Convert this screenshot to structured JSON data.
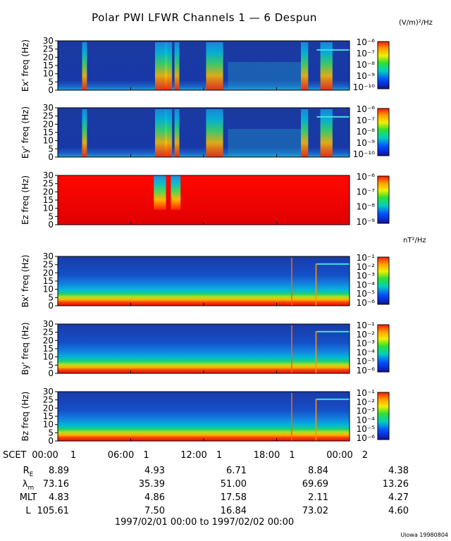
{
  "title": "Polar PWI LFWR Channels 1 — 6 Despun",
  "credit": "Uiowa 19980804",
  "date_range": "1997/02/01 00:00 to 1997/02/02 00:00",
  "units": {
    "electric": "(V/m)²/Hz",
    "magnetic": "nT²/Hz"
  },
  "colors": {
    "text": "#000000",
    "background": "#ffffff"
  },
  "chart_data": {
    "type": "heatmap",
    "description_axes": {
      "x": "SCET (time of day)",
      "y": "frequency (Hz)"
    },
    "ylim": [
      0,
      30
    ],
    "yticks": [
      0,
      5,
      10,
      15,
      20,
      25,
      30
    ],
    "xlim_hours": [
      0,
      24
    ],
    "x_ticks": [
      {
        "hour": 0,
        "label": "00:00",
        "day": "1"
      },
      {
        "hour": 6,
        "label": "06:00",
        "day": "1"
      },
      {
        "hour": 12,
        "label": "12:00",
        "day": "1"
      },
      {
        "hour": 18,
        "label": "18:00",
        "day": "1"
      },
      {
        "hour": 24,
        "label": "00:00",
        "day": "2"
      }
    ],
    "panels": [
      {
        "ylabel": "Ex' freq (Hz)",
        "unit_group": "electric",
        "colorbar": {
          "min_exp": -10,
          "max_exp": -6,
          "labels": [
            "10⁻⁶",
            "10⁻⁷",
            "10⁻⁸",
            "10⁻⁹",
            "10⁻¹⁰"
          ]
        }
      },
      {
        "ylabel": "Ey' freq (Hz)",
        "unit_group": "electric",
        "colorbar": {
          "min_exp": -10,
          "max_exp": -6,
          "labels": [
            "10⁻⁶",
            "10⁻⁷",
            "10⁻⁸",
            "10⁻⁹",
            "10⁻¹⁰"
          ]
        }
      },
      {
        "ylabel": "Ez freq (Hz)",
        "unit_group": "electric",
        "colorbar": {
          "min_exp": -9,
          "max_exp": -6,
          "labels": [
            "10⁻⁶",
            "10⁻⁷",
            "10⁻⁸",
            "10⁻⁹"
          ]
        }
      },
      {
        "ylabel": "Bx' freq (Hz)",
        "unit_group": "magnetic",
        "colorbar": {
          "min_exp": -6,
          "max_exp": -1,
          "labels": [
            "10⁻¹",
            "10⁻²",
            "10⁻³",
            "10⁻⁴",
            "10⁻⁵",
            "10⁻⁶"
          ]
        }
      },
      {
        "ylabel": "By' freq (Hz)",
        "unit_group": "magnetic",
        "colorbar": {
          "min_exp": -6,
          "max_exp": -1,
          "labels": [
            "10⁻¹",
            "10⁻²",
            "10⁻³",
            "10⁻⁴",
            "10⁻⁵",
            "10⁻⁶"
          ]
        }
      },
      {
        "ylabel": "Bz freq (Hz)",
        "unit_group": "magnetic",
        "colorbar": {
          "min_exp": -6,
          "max_exp": -1,
          "labels": [
            "10⁻¹",
            "10⁻²",
            "10⁻³",
            "10⁻⁴",
            "10⁻⁵",
            "10⁻⁶"
          ]
        }
      }
    ],
    "ephemeris": {
      "header": "SCET",
      "rows": [
        {
          "label": "RE",
          "label_main": "R",
          "label_sub": "E",
          "values": [
            "8.89",
            "4.93",
            "6.71",
            "8.84",
            "4.38"
          ]
        },
        {
          "label": "λm",
          "label_main": "λ",
          "label_sub": "m",
          "values": [
            "73.16",
            "35.39",
            "51.00",
            "69.69",
            "13.26"
          ]
        },
        {
          "label": "MLT",
          "label_main": "MLT",
          "label_sub": "",
          "values": [
            "4.83",
            "4.86",
            "17.58",
            "2.11",
            "4.27"
          ]
        },
        {
          "label": "L",
          "label_main": "L",
          "label_sub": "",
          "values": [
            "105.61",
            "7.50",
            "16.84",
            "73.02",
            "4.60"
          ]
        }
      ]
    }
  }
}
